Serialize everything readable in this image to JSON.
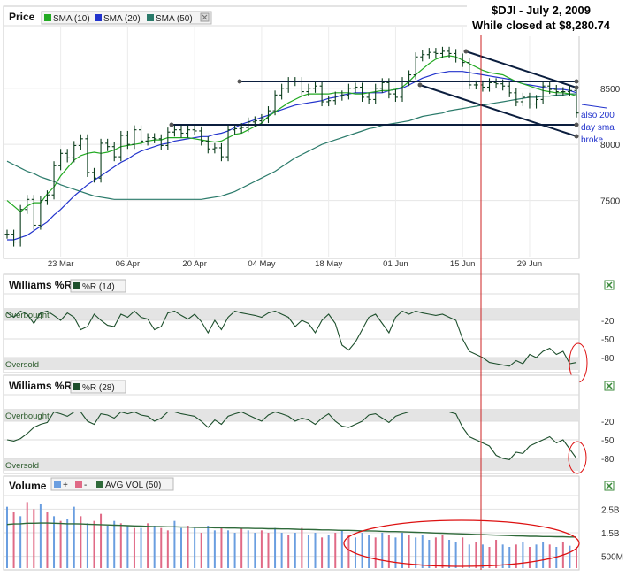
{
  "annotation": {
    "title_line1": "$DJI - July 2, 2009",
    "title_line2": "While closed at $8,280.74",
    "note_lines": [
      "also 200",
      "day sma",
      "broke"
    ]
  },
  "colors": {
    "sma10": "#22aa22",
    "sma20": "#2233cc",
    "sma50": "#2a7a6a",
    "price_bar": "#0b3d1c",
    "wr": "#1d4f2c",
    "trendline": "#0b1e3e",
    "vertical_marker": "#cc2222",
    "highlight_ellipse": "#dd1111",
    "vol_up": "#6a9ee0",
    "vol_down": "#e06a86",
    "avg_vol": "#2f6a3a"
  },
  "chart_data": [
    {
      "type": "line",
      "panel": "price",
      "title": "Price",
      "legend": [
        "SMA (10)",
        "SMA (20)",
        "SMA (50)"
      ],
      "y_ticks": [
        "8500",
        "8000",
        "7500"
      ],
      "ylim": [
        7000,
        9050
      ],
      "x_ticks": [
        "23 Mar",
        "06 Apr",
        "20 Apr",
        "04 May",
        "18 May",
        "01 Jun",
        "15 Jun",
        "29 Jun"
      ],
      "x_tick_index": [
        8,
        18,
        28,
        38,
        48,
        58,
        68,
        78
      ],
      "n_days": 86,
      "close": [
        7200,
        7130,
        7420,
        7510,
        7280,
        7500,
        7550,
        7810,
        7920,
        7880,
        7990,
        8050,
        7750,
        7700,
        8010,
        7980,
        7890,
        8080,
        8000,
        8130,
        8030,
        8060,
        8050,
        7990,
        8110,
        8130,
        8100,
        8130,
        8120,
        8030,
        7960,
        7970,
        7890,
        8130,
        8140,
        8150,
        8200,
        8210,
        8230,
        8300,
        8440,
        8500,
        8560,
        8560,
        8470,
        8500,
        8520,
        8380,
        8390,
        8430,
        8440,
        8500,
        8510,
        8420,
        8400,
        8500,
        8550,
        8450,
        8420,
        8560,
        8620,
        8780,
        8800,
        8820,
        8810,
        8830,
        8810,
        8770,
        8730,
        8530,
        8530,
        8510,
        8550,
        8540,
        8520,
        8460,
        8380,
        8420,
        8360,
        8400,
        8520,
        8490,
        8470,
        8470,
        8480,
        8280
      ],
      "sma10": [
        7500,
        7450,
        7400,
        7450,
        7480,
        7480,
        7560,
        7620,
        7720,
        7790,
        7860,
        7900,
        7920,
        7930,
        7920,
        7930,
        7950,
        7980,
        7990,
        8000,
        8010,
        8030,
        8040,
        8040,
        8060,
        8060,
        8060,
        8060,
        8050,
        8040,
        8030,
        8020,
        8030,
        8060,
        8090,
        8100,
        8130,
        8160,
        8190,
        8250,
        8290,
        8330,
        8370,
        8400,
        8430,
        8450,
        8450,
        8450,
        8450,
        8460,
        8460,
        8460,
        8450,
        8450,
        8460,
        8470,
        8480,
        8480,
        8490,
        8510,
        8560,
        8620,
        8670,
        8720,
        8760,
        8780,
        8790,
        8780,
        8750,
        8720,
        8690,
        8660,
        8640,
        8630,
        8620,
        8590,
        8560,
        8540,
        8520,
        8500,
        8480,
        8470,
        8460,
        8460,
        8450,
        8430
      ],
      "sma20": [
        7150,
        7150,
        7170,
        7190,
        7230,
        7270,
        7310,
        7370,
        7420,
        7480,
        7540,
        7590,
        7640,
        7680,
        7720,
        7760,
        7800,
        7840,
        7870,
        7910,
        7940,
        7960,
        7980,
        8000,
        8010,
        8030,
        8040,
        8050,
        8060,
        8070,
        8070,
        8090,
        8100,
        8120,
        8150,
        8180,
        8200,
        8220,
        8240,
        8260,
        8290,
        8310,
        8330,
        8350,
        8360,
        8370,
        8380,
        8390,
        8410,
        8420,
        8440,
        8450,
        8460,
        8460,
        8460,
        8460,
        8460,
        8480,
        8490,
        8500,
        8530,
        8560,
        8590,
        8610,
        8630,
        8640,
        8650,
        8650,
        8650,
        8640,
        8630,
        8620,
        8610,
        8600,
        8590,
        8580,
        8560,
        8540,
        8530,
        8520,
        8510,
        8500,
        8490,
        8490,
        8480,
        8460
      ],
      "sma50": [
        7850,
        7820,
        7790,
        7760,
        7740,
        7710,
        7690,
        7670,
        7640,
        7620,
        7600,
        7580,
        7560,
        7540,
        7530,
        7520,
        7510,
        7510,
        7510,
        7510,
        7510,
        7510,
        7510,
        7510,
        7510,
        7510,
        7510,
        7510,
        7510,
        7510,
        7520,
        7530,
        7540,
        7560,
        7580,
        7610,
        7640,
        7670,
        7700,
        7730,
        7760,
        7800,
        7840,
        7880,
        7910,
        7940,
        7970,
        8000,
        8020,
        8040,
        8060,
        8080,
        8100,
        8120,
        8140,
        8150,
        8170,
        8180,
        8190,
        8200,
        8210,
        8230,
        8250,
        8260,
        8270,
        8280,
        8300,
        8310,
        8320,
        8330,
        8340,
        8350,
        8360,
        8370,
        8380,
        8390,
        8400,
        8410,
        8420,
        8420,
        8430,
        8430,
        8440,
        8440,
        8450,
        8450
      ]
    },
    {
      "type": "line",
      "panel": "williams_r_14",
      "title": "Williams %R",
      "legend": [
        "%R (14)"
      ],
      "y_ticks": [
        "-20",
        "-50",
        "-80"
      ],
      "ylim": [
        -100,
        0
      ],
      "zone_labels": [
        "Overbought",
        "Oversold"
      ],
      "values": [
        -8,
        -15,
        -5,
        -10,
        -25,
        -8,
        -5,
        -12,
        -20,
        -8,
        -15,
        -35,
        -30,
        -10,
        -20,
        -28,
        -30,
        -10,
        -15,
        -5,
        -15,
        -18,
        -35,
        -30,
        -8,
        -5,
        -12,
        -18,
        -10,
        -22,
        -40,
        -20,
        -35,
        -15,
        -5,
        -8,
        -10,
        -12,
        -15,
        -8,
        -5,
        -10,
        -15,
        -30,
        -20,
        -25,
        -40,
        -20,
        -10,
        -25,
        -60,
        -68,
        -55,
        -35,
        -15,
        -10,
        -25,
        -40,
        -15,
        -5,
        -10,
        -5,
        -8,
        -10,
        -12,
        -10,
        -15,
        -20,
        -50,
        -70,
        -75,
        -80,
        -88,
        -90,
        -92,
        -94,
        -85,
        -90,
        -75,
        -80,
        -70,
        -65,
        -75,
        -70,
        -90,
        -88
      ]
    },
    {
      "type": "line",
      "panel": "williams_r_28",
      "title": "Williams %R",
      "legend": [
        "%R (28)"
      ],
      "y_ticks": [
        "-20",
        "-50",
        "-80"
      ],
      "ylim": [
        -100,
        0
      ],
      "zone_labels": [
        "Overbought",
        "Oversold"
      ],
      "values": [
        -50,
        -52,
        -48,
        -40,
        -30,
        -25,
        -22,
        -5,
        -8,
        -12,
        -5,
        -5,
        -20,
        -25,
        -8,
        -10,
        -15,
        -5,
        -8,
        -5,
        -10,
        -12,
        -20,
        -15,
        -5,
        -5,
        -8,
        -10,
        -12,
        -20,
        -30,
        -18,
        -25,
        -12,
        -8,
        -5,
        -10,
        -15,
        -20,
        -10,
        -5,
        -8,
        -12,
        -20,
        -15,
        -18,
        -25,
        -15,
        -8,
        -20,
        -28,
        -30,
        -25,
        -20,
        -10,
        -8,
        -15,
        -22,
        -12,
        -8,
        -5,
        -5,
        -5,
        -5,
        -5,
        -5,
        -5,
        -8,
        -30,
        -45,
        -50,
        -55,
        -60,
        -75,
        -80,
        -82,
        -70,
        -72,
        -60,
        -55,
        -50,
        -45,
        -55,
        -50,
        -65,
        -80
      ]
    },
    {
      "type": "bar",
      "panel": "volume",
      "title": "Volume",
      "legend": [
        "+",
        "-",
        "AVG VOL (50)"
      ],
      "y_ticks": [
        "2.5B",
        "1.5B",
        "500M"
      ],
      "ylim": [
        0,
        3000
      ],
      "unit": "M",
      "up_down": [
        0,
        1,
        0,
        1,
        1,
        0,
        1,
        0,
        1,
        0,
        0,
        1,
        0,
        1,
        1,
        0,
        0,
        1,
        0,
        1,
        0,
        1,
        0,
        1,
        1,
        0,
        0,
        1,
        0,
        1,
        0,
        0,
        1,
        0,
        0,
        1,
        0,
        0,
        1,
        1,
        0,
        0,
        1,
        0,
        1,
        0,
        0,
        1,
        0,
        1,
        0,
        1,
        0,
        0,
        0,
        1,
        0,
        1,
        0,
        0,
        1,
        0,
        0,
        0,
        1,
        1,
        0,
        0,
        1,
        0,
        1,
        0,
        1,
        1,
        0,
        0,
        1,
        0,
        1,
        0,
        0,
        1,
        0,
        1,
        0,
        1
      ],
      "values": [
        2600,
        2400,
        2200,
        2800,
        2500,
        2700,
        2400,
        2200,
        2000,
        2100,
        2600,
        2200,
        1900,
        2000,
        2300,
        1800,
        2000,
        1900,
        1800,
        1700,
        1700,
        1900,
        1800,
        1700,
        1600,
        2000,
        1700,
        1800,
        1700,
        1500,
        1800,
        1600,
        1700,
        1600,
        1500,
        1700,
        1600,
        1500,
        1600,
        1500,
        1700,
        1500,
        1400,
        1500,
        1700,
        1400,
        1500,
        1300,
        1400,
        1500,
        1600,
        1400,
        1300,
        1500,
        1400,
        1300,
        1500,
        1400,
        1300,
        1500,
        1400,
        1300,
        1400,
        1200,
        1300,
        1400,
        1200,
        1100,
        1300,
        1000,
        1100,
        1000,
        900,
        1200,
        1000,
        900,
        1000,
        1100,
        900,
        1000,
        1100,
        1000,
        900,
        1100,
        950,
        900
      ],
      "avg_vol": [
        1850,
        1870,
        1880,
        1900,
        1900,
        1910,
        1910,
        1900,
        1890,
        1880,
        1880,
        1870,
        1860,
        1850,
        1840,
        1830,
        1820,
        1810,
        1800,
        1790,
        1780,
        1770,
        1760,
        1760,
        1750,
        1750,
        1740,
        1740,
        1730,
        1720,
        1720,
        1710,
        1710,
        1700,
        1700,
        1690,
        1690,
        1680,
        1680,
        1670,
        1670,
        1660,
        1660,
        1650,
        1640,
        1640,
        1630,
        1620,
        1620,
        1610,
        1600,
        1600,
        1590,
        1580,
        1580,
        1570,
        1560,
        1550,
        1550,
        1540,
        1530,
        1520,
        1510,
        1500,
        1490,
        1480,
        1470,
        1460,
        1450,
        1440,
        1430,
        1420,
        1410,
        1400,
        1390,
        1380,
        1370,
        1360,
        1350,
        1350,
        1340,
        1340,
        1330,
        1330,
        1320,
        1320
      ]
    }
  ]
}
